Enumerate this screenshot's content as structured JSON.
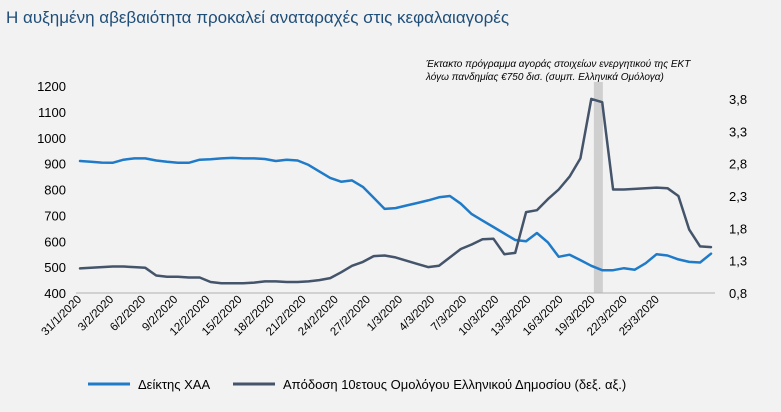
{
  "title": "Η αυξημένη αβεβαιότητα προκαλεί αναταραχές στις κεφαλαιαγορές",
  "chart_data": {
    "type": "line",
    "title": "Η αυξημένη αβεβαιότητα προκαλεί αναταραχές στις κεφαλαιαγορές",
    "x_tick_labels": [
      "31/1/2020",
      "3/2/2020",
      "6/2/2020",
      "9/2/2020",
      "12/2/2020",
      "15/2/2020",
      "18/2/2020",
      "21/2/2020",
      "24/2/2020",
      "27/2/2020",
      "1/3/2020",
      "4/3/2020",
      "7/3/2020",
      "10/3/2020",
      "13/3/2020",
      "16/3/2020",
      "19/3/2020",
      "22/3/2020",
      "25/3/2020"
    ],
    "x_range": [
      "31/1/2020",
      "29/3/2020"
    ],
    "y_left": {
      "ticks": [
        400,
        500,
        600,
        700,
        800,
        900,
        1000,
        1100,
        1200
      ],
      "range": [
        400,
        1200
      ]
    },
    "y_right": {
      "ticks": [
        "0,8",
        "1,3",
        "1,8",
        "2,3",
        "2,8",
        "3,3",
        "3,8"
      ],
      "range": [
        0.8,
        4.0
      ]
    },
    "series": [
      {
        "name": "Δείκτης ΧΑΑ",
        "axis": "left",
        "color": "#1f7bc8",
        "x": [
          0,
          1,
          2,
          3,
          4,
          5,
          6,
          7,
          8,
          9,
          10,
          11,
          12,
          13,
          14,
          15,
          16,
          17,
          18,
          19,
          20,
          21,
          22,
          23,
          24,
          25,
          26,
          27,
          28,
          29,
          30,
          31,
          32,
          33,
          34,
          35,
          36,
          37,
          38,
          39,
          40,
          41,
          42,
          43,
          44,
          45,
          46,
          47,
          48,
          49,
          50,
          51,
          52,
          53,
          54,
          55,
          56,
          57,
          58
        ],
        "y": [
          910,
          907,
          904,
          903,
          915,
          920,
          920,
          912,
          907,
          903,
          903,
          915,
          917,
          920,
          922,
          920,
          920,
          918,
          910,
          915,
          912,
          895,
          870,
          845,
          830,
          835,
          810,
          768,
          725,
          728,
          738,
          748,
          758,
          770,
          775,
          745,
          705,
          680,
          655,
          630,
          605,
          600,
          632,
          596,
          540,
          548,
          527,
          505,
          488,
          488,
          496,
          490,
          515,
          550,
          545,
          530,
          520,
          518,
          552
        ]
      },
      {
        "name": "Απόδοση 10ετους Ομολόγου Ελληνικού Δημοσίου (δεξ. αξ.)",
        "axis": "right",
        "color": "#44546a",
        "x": [
          0,
          1,
          2,
          3,
          4,
          5,
          6,
          7,
          8,
          9,
          10,
          11,
          12,
          13,
          14,
          15,
          16,
          17,
          18,
          19,
          20,
          21,
          22,
          23,
          24,
          25,
          26,
          27,
          28,
          29,
          30,
          31,
          32,
          33,
          34,
          35,
          36,
          37,
          38,
          39,
          40,
          41,
          42,
          43,
          44,
          45,
          46,
          47,
          48,
          49,
          50,
          51,
          52,
          53,
          54,
          55,
          56,
          57,
          58
        ],
        "y": [
          1.18,
          1.19,
          1.2,
          1.21,
          1.21,
          1.2,
          1.19,
          1.07,
          1.05,
          1.05,
          1.04,
          1.04,
          0.97,
          0.95,
          0.95,
          0.95,
          0.96,
          0.98,
          0.98,
          0.97,
          0.97,
          0.98,
          1.0,
          1.03,
          1.12,
          1.22,
          1.28,
          1.37,
          1.38,
          1.35,
          1.3,
          1.25,
          1.2,
          1.22,
          1.35,
          1.48,
          1.55,
          1.63,
          1.64,
          1.4,
          1.42,
          2.05,
          2.08,
          2.25,
          2.4,
          2.6,
          2.88,
          3.8,
          3.75,
          2.4,
          2.4,
          2.41,
          2.42,
          2.43,
          2.42,
          2.3,
          1.78,
          1.52,
          1.51
        ]
      }
    ],
    "highlight": {
      "label_index": 16
    },
    "annotation": "Έκτακτο πρόγραμμα αγοράς στοιχείων ενεργητικού της ΕΚΤ λόγω πανδημίας €750 δισ. (συμπ. Ελληνικά Ομόλογα)",
    "annotation_lines": [
      "Έκτακτο  πρόγραμμα  αγοράς  στοιχείων  ενεργητικού της  ΕΚΤ",
      "λόγω πανδημίας  €750 δισ. (συμπ. Ελληνικά  Ομόλογα)"
    ],
    "legend_position": "bottom",
    "grid": false
  }
}
